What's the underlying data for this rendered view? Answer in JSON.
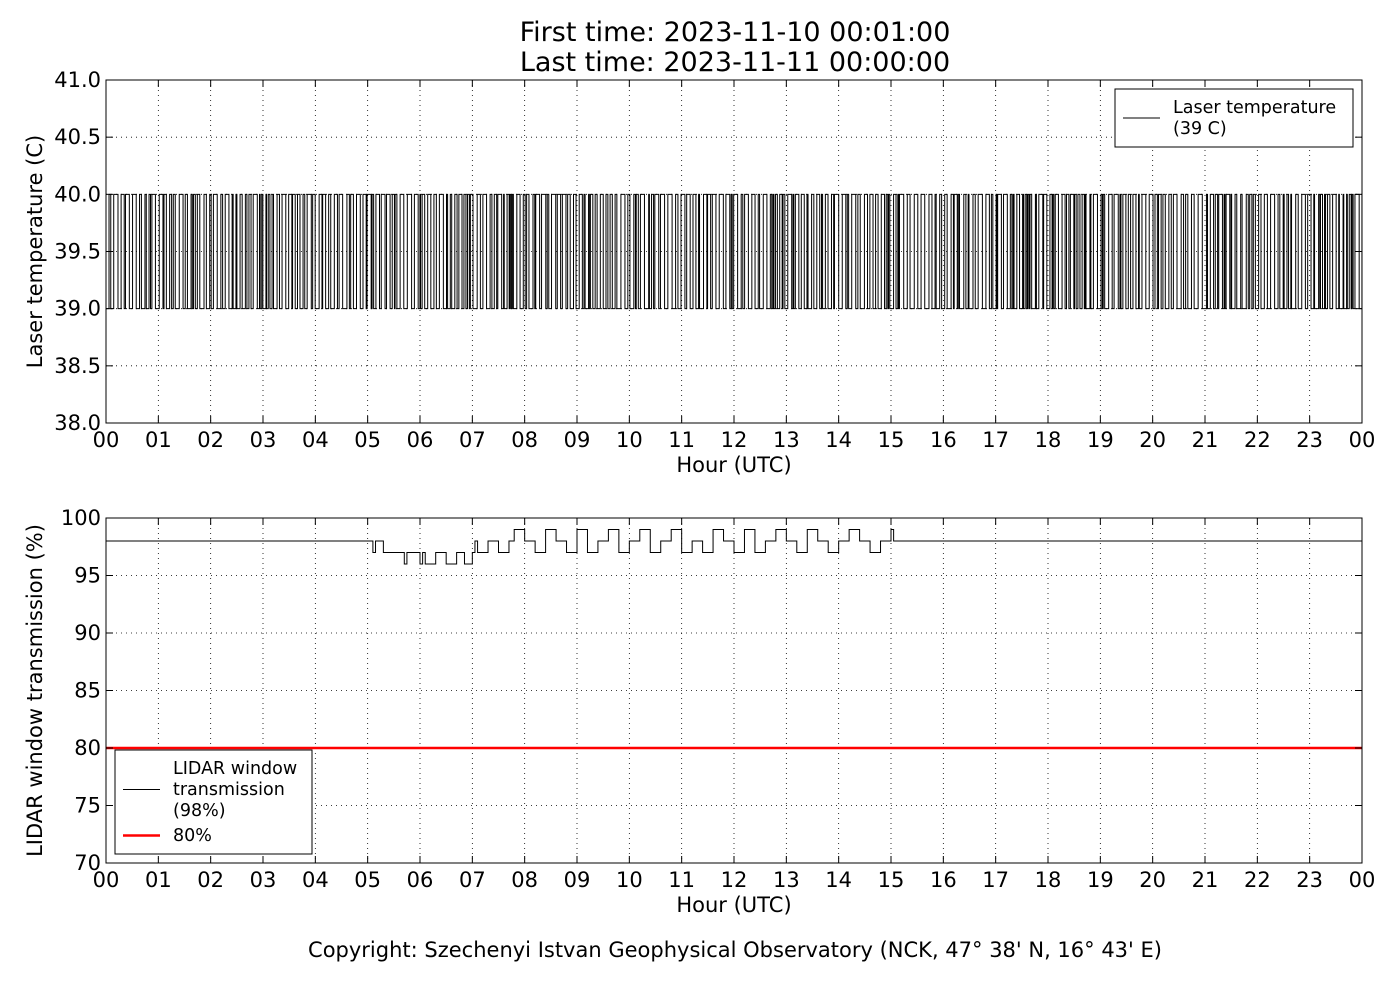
{
  "figure": {
    "title_line_1": "First time: 2023-11-10 00:01:00",
    "title_line_2": "Last time: 2023-11-11 00:00:00",
    "copyright": "Copyright: Szechenyi Istvan Geophysical Observatory (NCK, 47° 38' N, 16° 43' E)"
  },
  "chart_data": [
    {
      "type": "line",
      "xlabel": "Hour (UTC)",
      "ylabel": "Laser temperature (C)",
      "xlim": [
        0,
        24
      ],
      "ylim": [
        38.0,
        41.0
      ],
      "x_ticks": [
        0,
        1,
        2,
        3,
        4,
        5,
        6,
        7,
        8,
        9,
        10,
        11,
        12,
        13,
        14,
        15,
        16,
        17,
        18,
        19,
        20,
        21,
        22,
        23,
        24
      ],
      "x_tick_labels": [
        "00",
        "01",
        "02",
        "03",
        "04",
        "05",
        "06",
        "07",
        "08",
        "09",
        "10",
        "11",
        "12",
        "13",
        "14",
        "15",
        "16",
        "17",
        "18",
        "19",
        "20",
        "21",
        "22",
        "23",
        "00"
      ],
      "y_ticks": [
        38.0,
        38.5,
        39.0,
        39.5,
        40.0,
        40.5,
        41.0
      ],
      "y_tick_labels": [
        "38.0",
        "38.5",
        "39.0",
        "39.5",
        "40.0",
        "40.5",
        "41.0"
      ],
      "grid": true,
      "legend_position": "upper-right",
      "series": [
        {
          "name": "Laser temperature\n(39 C)",
          "color": "#000000",
          "values_range": [
            39.0,
            40.0
          ],
          "description_samples": [
            [
              0.0,
              39.0
            ],
            [
              0.1,
              40.0
            ],
            [
              0.2,
              39.0
            ],
            [
              0.4,
              40.0
            ],
            [
              0.6,
              39.0
            ],
            [
              0.9,
              40.0
            ],
            [
              1.1,
              39.0
            ],
            [
              1.4,
              40.0
            ],
            [
              1.8,
              39.0
            ],
            [
              2.2,
              40.0
            ],
            [
              2.6,
              39.0
            ],
            [
              3.0,
              40.0
            ],
            [
              3.4,
              39.0
            ],
            [
              3.8,
              40.0
            ],
            [
              4.2,
              39.0
            ],
            [
              4.6,
              40.0
            ],
            [
              5.0,
              39.0
            ],
            [
              5.4,
              40.0
            ],
            [
              5.8,
              39.0
            ],
            [
              6.2,
              40.0
            ],
            [
              6.6,
              39.0
            ],
            [
              7.0,
              40.0
            ],
            [
              7.4,
              39.0
            ],
            [
              7.8,
              40.0
            ],
            [
              8.2,
              39.0
            ],
            [
              8.6,
              40.0
            ],
            [
              9.0,
              39.0
            ],
            [
              9.4,
              40.0
            ],
            [
              9.8,
              39.0
            ],
            [
              10.2,
              40.0
            ],
            [
              10.6,
              39.0
            ],
            [
              11.0,
              40.0
            ],
            [
              11.4,
              39.0
            ],
            [
              11.8,
              40.0
            ],
            [
              12.2,
              39.0
            ],
            [
              12.6,
              40.0
            ],
            [
              13.0,
              39.0
            ],
            [
              13.4,
              40.0
            ],
            [
              13.8,
              39.0
            ],
            [
              14.2,
              40.0
            ],
            [
              14.6,
              39.0
            ],
            [
              15.0,
              40.0
            ],
            [
              15.4,
              39.0
            ],
            [
              15.8,
              40.0
            ],
            [
              16.2,
              39.0
            ],
            [
              16.6,
              40.0
            ],
            [
              17.0,
              39.0
            ],
            [
              17.4,
              40.0
            ],
            [
              17.8,
              39.0
            ],
            [
              18.2,
              40.0
            ],
            [
              18.6,
              39.0
            ],
            [
              19.0,
              40.0
            ],
            [
              19.4,
              39.0
            ],
            [
              19.8,
              40.0
            ],
            [
              20.2,
              39.0
            ],
            [
              20.6,
              40.0
            ],
            [
              21.0,
              39.0
            ],
            [
              21.4,
              40.0
            ],
            [
              21.8,
              39.0
            ],
            [
              22.2,
              40.0
            ],
            [
              22.6,
              39.0
            ],
            [
              23.0,
              40.0
            ],
            [
              23.4,
              39.0
            ],
            [
              23.8,
              40.0
            ],
            [
              24.0,
              39.0
            ]
          ]
        }
      ]
    },
    {
      "type": "line",
      "xlabel": "Hour (UTC)",
      "ylabel": "LIDAR window transmission (%)",
      "xlim": [
        0,
        24
      ],
      "ylim": [
        70,
        100
      ],
      "x_ticks": [
        0,
        1,
        2,
        3,
        4,
        5,
        6,
        7,
        8,
        9,
        10,
        11,
        12,
        13,
        14,
        15,
        16,
        17,
        18,
        19,
        20,
        21,
        22,
        23,
        24
      ],
      "x_tick_labels": [
        "00",
        "01",
        "02",
        "03",
        "04",
        "05",
        "06",
        "07",
        "08",
        "09",
        "10",
        "11",
        "12",
        "13",
        "14",
        "15",
        "16",
        "17",
        "18",
        "19",
        "20",
        "21",
        "22",
        "23",
        "00"
      ],
      "y_ticks": [
        70,
        75,
        80,
        85,
        90,
        95,
        100
      ],
      "y_tick_labels": [
        "70",
        "75",
        "80",
        "85",
        "90",
        "95",
        "100"
      ],
      "grid": true,
      "legend_position": "lower-left",
      "series": [
        {
          "name": "LIDAR window\ntransmission\n(98%)",
          "color": "#000000",
          "x": [
            0,
            5.05,
            5.1,
            5.15,
            5.2,
            5.3,
            5.5,
            5.7,
            5.75,
            5.8,
            5.9,
            6.0,
            6.05,
            6.1,
            6.3,
            6.5,
            6.7,
            6.85,
            7.0,
            7.05,
            7.1,
            7.3,
            7.5,
            7.7,
            7.8,
            8.0,
            8.2,
            8.4,
            8.6,
            8.8,
            9.0,
            9.2,
            9.4,
            9.6,
            9.8,
            10.0,
            10.2,
            10.4,
            10.6,
            10.8,
            11.0,
            11.2,
            11.4,
            11.6,
            11.8,
            12.0,
            12.2,
            12.4,
            12.6,
            12.8,
            13.0,
            13.2,
            13.4,
            13.6,
            13.8,
            14.0,
            14.2,
            14.4,
            14.6,
            14.8,
            15.0,
            15.05,
            15.1,
            24
          ],
          "values": [
            98,
            98,
            97,
            98,
            98,
            97,
            97,
            96,
            97,
            97,
            97,
            96,
            97,
            96,
            97,
            96,
            97,
            96,
            97,
            98,
            97,
            98,
            97,
            98,
            99,
            98,
            97,
            99,
            98,
            97,
            99,
            97,
            98,
            99,
            97,
            98,
            99,
            97,
            98,
            99,
            97,
            98,
            97,
            99,
            98,
            97,
            99,
            97,
            98,
            99,
            98,
            97,
            99,
            98,
            97,
            98,
            99,
            98,
            97,
            98,
            99,
            98,
            98,
            98
          ]
        },
        {
          "name": "80%",
          "color": "#ff0000",
          "x": [
            0,
            24
          ],
          "values": [
            80,
            80
          ]
        }
      ]
    }
  ]
}
